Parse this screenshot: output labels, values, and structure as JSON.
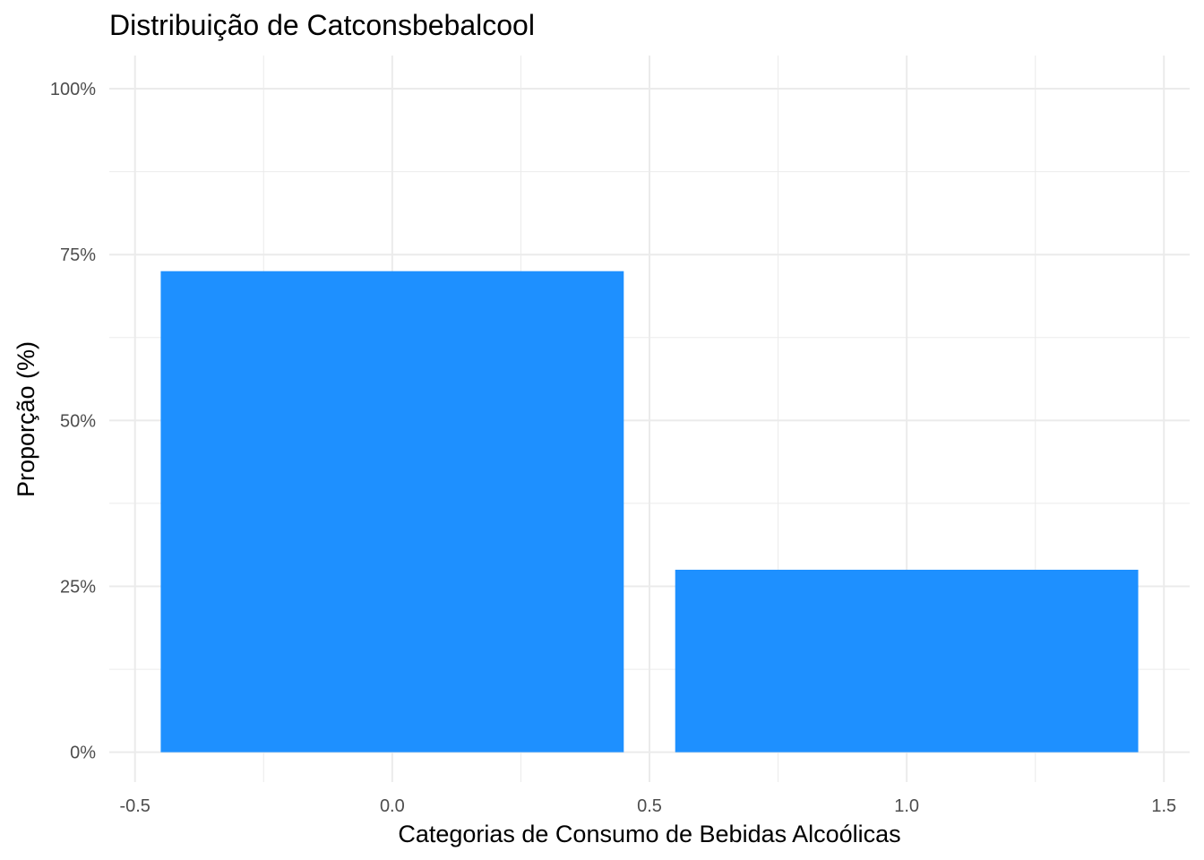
{
  "chart_data": {
    "type": "bar",
    "title": "Distribuição de Catconsbebalcool",
    "xlabel": "Categorias de Consumo de Bebidas Alcoólicas",
    "ylabel": "Proporção (%)",
    "x": [
      0,
      1
    ],
    "values": [
      0.725,
      0.275
    ],
    "bar_width": 0.9,
    "xlim": [
      -0.55,
      1.55
    ],
    "ylim": [
      -0.045,
      1.05
    ],
    "x_ticks": [
      {
        "value": -0.5,
        "label": "-0.5"
      },
      {
        "value": 0.0,
        "label": "0.0"
      },
      {
        "value": 0.5,
        "label": "0.5"
      },
      {
        "value": 1.0,
        "label": "1.0"
      },
      {
        "value": 1.5,
        "label": "1.5"
      }
    ],
    "y_ticks": [
      {
        "value": 0,
        "label": "0%"
      },
      {
        "value": 0.25,
        "label": "25%"
      },
      {
        "value": 0.5,
        "label": "50%"
      },
      {
        "value": 0.75,
        "label": "75%"
      },
      {
        "value": 1.0,
        "label": "100%"
      }
    ],
    "grid": true,
    "legend": "none",
    "bar_color": "#1E90FF",
    "grid_color": "#EBEBEB"
  }
}
